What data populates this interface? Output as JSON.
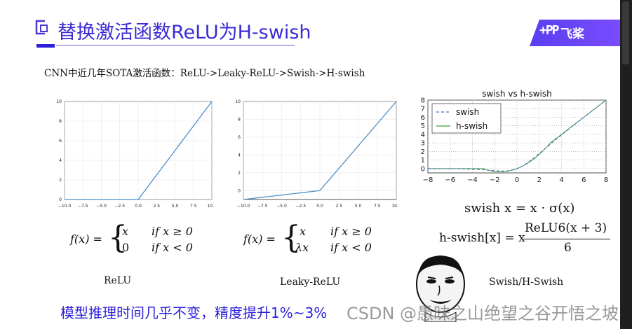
{
  "slide": {
    "title": "替换激活函数ReLU为H-swish",
    "logo_text": "飞桨",
    "logo_mark": "+PP",
    "subtitle": "CNN中近几年SOTA激活函数：ReLU->Leaky-ReLU->Swish->H-swish",
    "bottom_text": "模型推理时间几乎不变，精度提升1%~3%",
    "watermark": "CSDN @愚昧之山绝望之谷开悟之坡"
  },
  "colors": {
    "title": "#3b2ad6",
    "accent": "#2f1fd6",
    "relu_line": "#4c8fc8",
    "swish": "#4a6fc9",
    "hswish": "#3c9a3c"
  },
  "panels": {
    "relu": {
      "caption": "ReLU",
      "formula_lhs": "f(x) =",
      "case1_expr": "x",
      "case1_cond": "if   x ≥ 0",
      "case2_expr": "0",
      "case2_cond": "if   x < 0"
    },
    "leaky": {
      "caption": "Leaky-ReLU",
      "formula_lhs": "f(x) =",
      "case1_expr": "x",
      "case1_cond": "if   x ≥ 0",
      "case2_expr": "λx",
      "case2_cond": "if   x < 0"
    },
    "swish": {
      "caption": "Swish/H-Swish",
      "formula_swish": "swish x = x · σ(x)",
      "formula_hswish_lhs": "h-swish[x] = x",
      "formula_hswish_num": "ReLU6(x + 3)",
      "formula_hswish_den": "6"
    }
  },
  "chart_data": [
    {
      "type": "line",
      "title": "",
      "x_ticks": [
        "−10.0",
        "−7.5",
        "−5.0",
        "−2.5",
        "0.0",
        "2.5",
        "5.0",
        "7.5",
        "10.0"
      ],
      "y_ticks": [
        "0",
        "2",
        "4",
        "6",
        "8",
        "10"
      ],
      "xlim": [
        -10,
        10
      ],
      "ylim": [
        0,
        10
      ],
      "grid": true,
      "series": [
        {
          "x": [
            -10,
            0,
            10
          ],
          "y": [
            0,
            0,
            10
          ]
        }
      ]
    },
    {
      "type": "line",
      "title": "",
      "x_ticks": [
        "−10.0",
        "−7.5",
        "−5.0",
        "−2.5",
        "0.0",
        "2.5",
        "5.0",
        "7.5",
        "10.0"
      ],
      "y_ticks": [
        "0",
        "2",
        "4",
        "6",
        "8",
        "10"
      ],
      "xlim": [
        -10,
        10
      ],
      "ylim": [
        -1,
        10
      ],
      "grid": true,
      "series": [
        {
          "x": [
            -10,
            0,
            10
          ],
          "y": [
            -1,
            0,
            10
          ]
        }
      ]
    },
    {
      "type": "line",
      "title": "swish vs h-swish",
      "x_ticks": [
        "−8",
        "−6",
        "−4",
        "−2",
        "0",
        "2",
        "4",
        "6",
        "8"
      ],
      "y_ticks": [
        "0",
        "1",
        "2",
        "3",
        "4",
        "5",
        "6",
        "7",
        "8"
      ],
      "xlim": [
        -8,
        8
      ],
      "ylim": [
        -0.5,
        8
      ],
      "grid": true,
      "legend": "top-left",
      "series": [
        {
          "name": "swish",
          "style": "dashed"
        },
        {
          "name": "h-swish",
          "style": "solid"
        }
      ]
    }
  ]
}
